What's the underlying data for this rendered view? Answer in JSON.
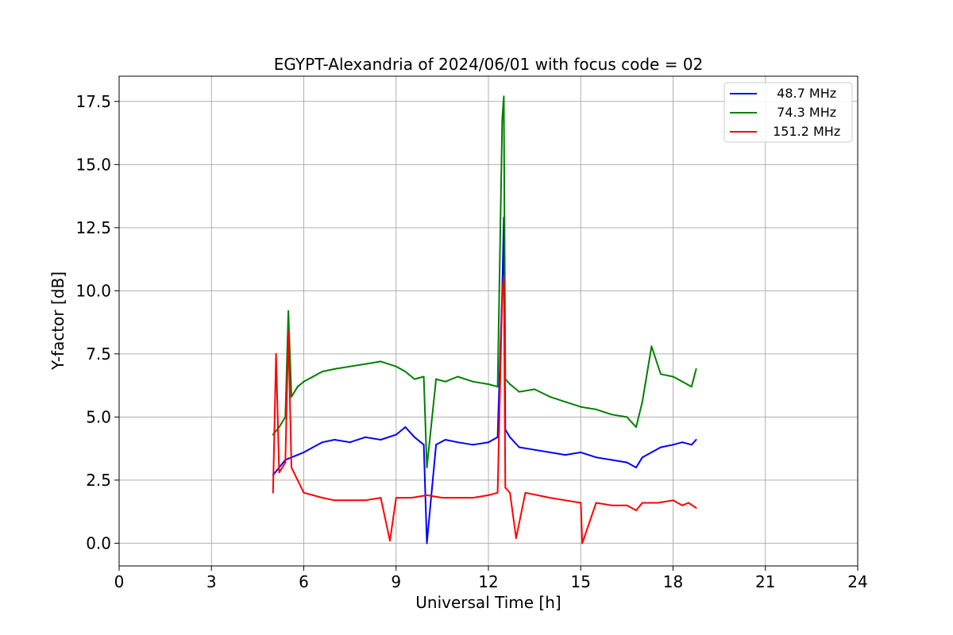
{
  "chart_data": {
    "type": "line",
    "title": "EGYPT-Alexandria of 2024/06/01 with focus code = 02",
    "xlabel": "Universal Time [h]",
    "ylabel": "Y-factor [dB]",
    "xlim": [
      0,
      24
    ],
    "ylim": [
      -0.9,
      18.5
    ],
    "xticks": [
      0,
      3,
      6,
      9,
      12,
      15,
      18,
      21,
      24
    ],
    "xtick_labels": [
      "0",
      "3",
      "6",
      "9",
      "12",
      "15",
      "18",
      "21",
      "24"
    ],
    "yticks": [
      0.0,
      2.5,
      5.0,
      7.5,
      10.0,
      12.5,
      15.0,
      17.5
    ],
    "ytick_labels": [
      "0.0",
      "2.5",
      "5.0",
      "7.5",
      "10.0",
      "12.5",
      "15.0",
      "17.5"
    ],
    "grid": true,
    "legend_position": "top-right",
    "series": [
      {
        "name": "  48.7 MHz",
        "color": "#0000ff",
        "x": [
          5.0,
          5.2,
          5.4,
          5.6,
          5.8,
          6.0,
          6.3,
          6.6,
          7.0,
          7.5,
          8.0,
          8.5,
          9.0,
          9.3,
          9.6,
          9.9,
          10.0,
          10.3,
          10.6,
          11.0,
          11.5,
          12.0,
          12.3,
          12.45,
          12.5,
          12.55,
          12.7,
          13.0,
          13.5,
          14.0,
          14.5,
          15.0,
          15.5,
          16.0,
          16.5,
          16.8,
          17.0,
          17.3,
          17.6,
          18.0,
          18.3,
          18.6,
          18.75
        ],
        "y": [
          2.7,
          3.0,
          3.3,
          3.4,
          3.5,
          3.6,
          3.8,
          4.0,
          4.1,
          4.0,
          4.2,
          4.1,
          4.3,
          4.6,
          4.2,
          3.9,
          0.0,
          3.9,
          4.1,
          4.0,
          3.9,
          4.0,
          4.2,
          10.0,
          12.9,
          4.5,
          4.2,
          3.8,
          3.7,
          3.6,
          3.5,
          3.6,
          3.4,
          3.3,
          3.2,
          3.0,
          3.4,
          3.6,
          3.8,
          3.9,
          4.0,
          3.9,
          4.1
        ]
      },
      {
        "name": "  74.3 MHz",
        "color": "#008000",
        "x": [
          5.0,
          5.2,
          5.4,
          5.5,
          5.6,
          5.8,
          6.0,
          6.3,
          6.6,
          7.0,
          7.5,
          8.0,
          8.5,
          9.0,
          9.3,
          9.6,
          9.9,
          10.0,
          10.3,
          10.6,
          11.0,
          11.5,
          12.0,
          12.3,
          12.45,
          12.5,
          12.55,
          12.7,
          13.0,
          13.5,
          14.0,
          14.5,
          15.0,
          15.5,
          16.0,
          16.5,
          16.8,
          17.0,
          17.3,
          17.6,
          18.0,
          18.3,
          18.6,
          18.75
        ],
        "y": [
          4.3,
          4.6,
          5.0,
          9.2,
          5.8,
          6.2,
          6.4,
          6.6,
          6.8,
          6.9,
          7.0,
          7.1,
          7.2,
          7.0,
          6.8,
          6.5,
          6.6,
          3.0,
          6.5,
          6.4,
          6.6,
          6.4,
          6.3,
          6.2,
          16.8,
          17.7,
          6.5,
          6.3,
          6.0,
          6.1,
          5.8,
          5.6,
          5.4,
          5.3,
          5.1,
          5.0,
          4.6,
          5.6,
          7.8,
          6.7,
          6.6,
          6.4,
          6.2,
          6.9
        ]
      },
      {
        "name": " 151.2 MHz",
        "color": "#ff0000",
        "x": [
          5.0,
          5.1,
          5.2,
          5.3,
          5.4,
          5.5,
          5.6,
          5.8,
          6.0,
          6.3,
          6.6,
          7.0,
          7.5,
          8.0,
          8.5,
          8.8,
          9.0,
          9.5,
          10.0,
          10.5,
          11.0,
          11.5,
          12.0,
          12.3,
          12.45,
          12.5,
          12.55,
          12.7,
          12.9,
          13.2,
          13.6,
          14.0,
          14.5,
          15.0,
          15.05,
          15.5,
          16.0,
          16.5,
          16.8,
          17.0,
          17.5,
          18.0,
          18.3,
          18.5,
          18.75
        ],
        "y": [
          2.0,
          7.5,
          2.8,
          3.0,
          3.2,
          8.4,
          3.0,
          2.5,
          2.0,
          1.9,
          1.8,
          1.7,
          1.7,
          1.7,
          1.8,
          0.1,
          1.8,
          1.8,
          1.9,
          1.8,
          1.8,
          1.8,
          1.9,
          2.0,
          9.9,
          10.5,
          2.2,
          2.0,
          0.2,
          2.0,
          1.9,
          1.8,
          1.7,
          1.6,
          0.0,
          1.6,
          1.5,
          1.5,
          1.3,
          1.6,
          1.6,
          1.7,
          1.5,
          1.6,
          1.4
        ]
      }
    ]
  }
}
